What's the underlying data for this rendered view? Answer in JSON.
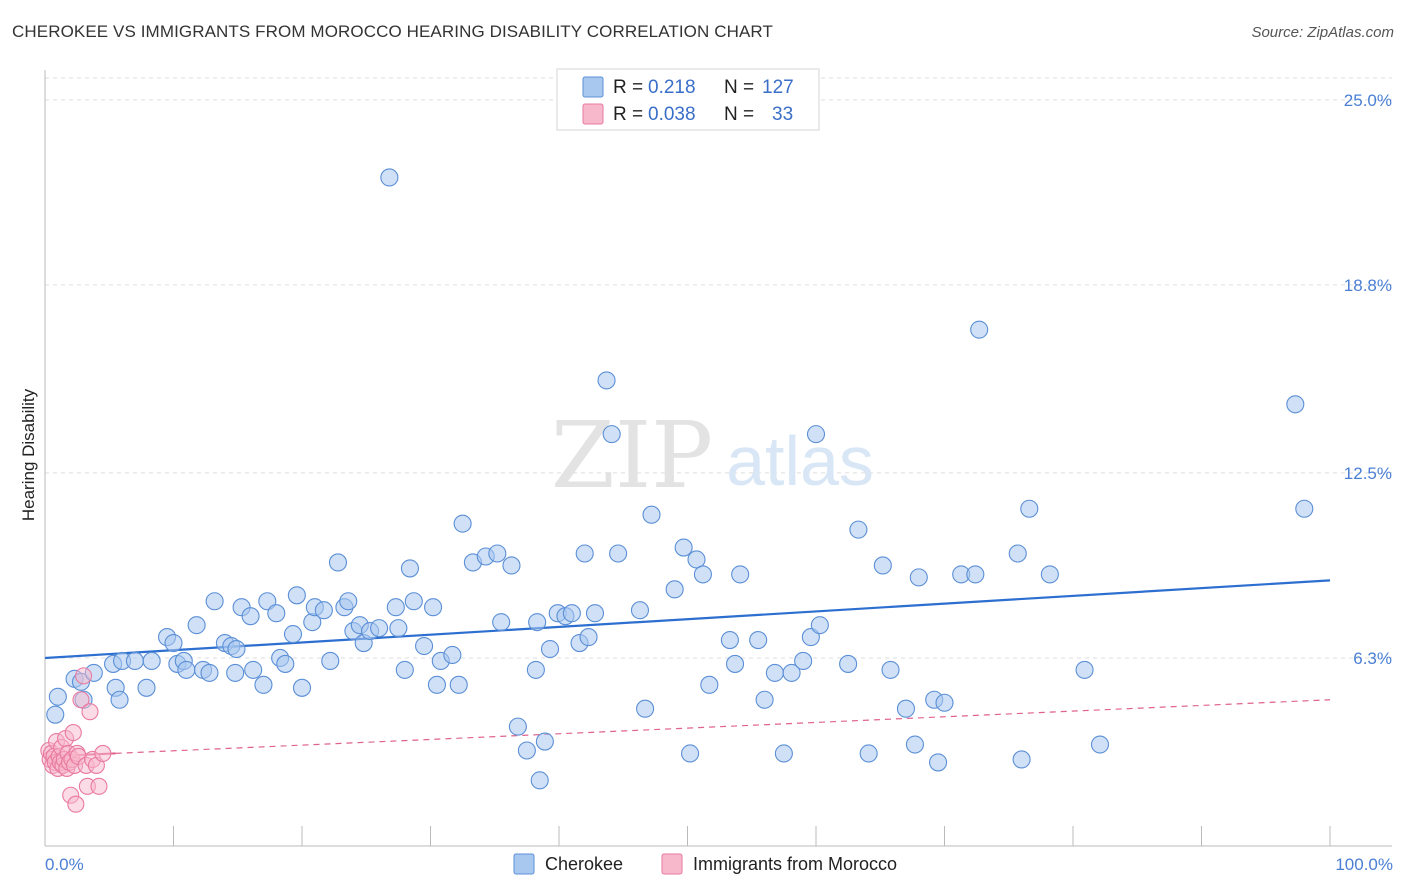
{
  "header": {
    "title": "CHEROKEE VS IMMIGRANTS FROM MOROCCO HEARING DISABILITY CORRELATION CHART",
    "source": "Source: ZipAtlas.com"
  },
  "watermark": {
    "zip": "ZIP",
    "atlas": "atlas"
  },
  "colors": {
    "cherokee_fill": "#a9c8f0",
    "cherokee_stroke": "#5b8fd6",
    "cherokee_line": "#2d6fd0",
    "morocco_fill": "#f7b8cc",
    "morocco_stroke": "#e97aa0",
    "morocco_line": "#e0628e",
    "grid": "#dddddd",
    "tick_text": "#4a7fd4"
  },
  "legend": {
    "rows": [
      {
        "r_label": "R =",
        "r_value": "0.218",
        "n_label": "N =",
        "n_value": "127"
      },
      {
        "r_label": "R =",
        "r_value": "0.038",
        "n_label": "N =",
        "n_value": "33"
      }
    ]
  },
  "chart_data": {
    "type": "scatter",
    "title": "CHEROKEE VS IMMIGRANTS FROM MOROCCO HEARING DISABILITY CORRELATION CHART",
    "xlabel": "",
    "ylabel": "Hearing Disability",
    "xlim": [
      0,
      100
    ],
    "ylim": [
      0,
      26
    ],
    "x_tick_labels": [
      "0.0%",
      "100.0%"
    ],
    "y_ticks": [
      6.3,
      12.5,
      18.8,
      25.0
    ],
    "y_tick_labels": [
      "6.3%",
      "12.5%",
      "18.8%",
      "25.0%"
    ],
    "series": [
      {
        "name": "Cherokee",
        "r": 0.218,
        "n": 127,
        "trend": {
          "x": [
            0,
            100
          ],
          "y": [
            6.3,
            8.9
          ]
        },
        "points": [
          [
            0.8,
            4.4
          ],
          [
            1.0,
            5.0
          ],
          [
            2.3,
            5.6
          ],
          [
            2.8,
            5.5
          ],
          [
            3.0,
            4.9
          ],
          [
            3.8,
            5.8
          ],
          [
            5.3,
            6.1
          ],
          [
            5.5,
            5.3
          ],
          [
            5.8,
            4.9
          ],
          [
            6.0,
            6.2
          ],
          [
            7.0,
            6.2
          ],
          [
            7.9,
            5.3
          ],
          [
            8.3,
            6.2
          ],
          [
            9.5,
            7.0
          ],
          [
            10.0,
            6.8
          ],
          [
            10.3,
            6.1
          ],
          [
            10.8,
            6.2
          ],
          [
            11.0,
            5.9
          ],
          [
            11.8,
            7.4
          ],
          [
            12.3,
            5.9
          ],
          [
            12.8,
            5.8
          ],
          [
            13.2,
            8.2
          ],
          [
            14.0,
            6.8
          ],
          [
            14.5,
            6.7
          ],
          [
            14.9,
            6.6
          ],
          [
            14.8,
            5.8
          ],
          [
            15.3,
            8.0
          ],
          [
            16.0,
            7.7
          ],
          [
            16.2,
            5.9
          ],
          [
            17.0,
            5.4
          ],
          [
            17.3,
            8.2
          ],
          [
            18.0,
            7.8
          ],
          [
            18.3,
            6.3
          ],
          [
            18.7,
            6.1
          ],
          [
            19.3,
            7.1
          ],
          [
            19.6,
            8.4
          ],
          [
            20.0,
            5.3
          ],
          [
            20.8,
            7.5
          ],
          [
            21.0,
            8.0
          ],
          [
            21.7,
            7.9
          ],
          [
            22.2,
            6.2
          ],
          [
            22.8,
            9.5
          ],
          [
            23.3,
            8.0
          ],
          [
            23.6,
            8.2
          ],
          [
            24.0,
            7.2
          ],
          [
            24.5,
            7.4
          ],
          [
            24.8,
            6.8
          ],
          [
            25.3,
            7.2
          ],
          [
            26.0,
            7.3
          ],
          [
            26.8,
            22.4
          ],
          [
            27.3,
            8.0
          ],
          [
            27.5,
            7.3
          ],
          [
            28.0,
            5.9
          ],
          [
            28.4,
            9.3
          ],
          [
            28.7,
            8.2
          ],
          [
            29.5,
            6.7
          ],
          [
            30.2,
            8.0
          ],
          [
            30.5,
            5.4
          ],
          [
            30.8,
            6.2
          ],
          [
            31.7,
            6.4
          ],
          [
            32.2,
            5.4
          ],
          [
            32.5,
            10.8
          ],
          [
            33.3,
            9.5
          ],
          [
            34.3,
            9.7
          ],
          [
            35.2,
            9.8
          ],
          [
            35.5,
            7.5
          ],
          [
            36.3,
            9.4
          ],
          [
            36.8,
            4.0
          ],
          [
            37.5,
            3.2
          ],
          [
            38.2,
            5.9
          ],
          [
            38.3,
            7.5
          ],
          [
            38.5,
            2.2
          ],
          [
            38.9,
            3.5
          ],
          [
            39.3,
            6.6
          ],
          [
            39.9,
            7.8
          ],
          [
            40.5,
            7.7
          ],
          [
            41.0,
            7.8
          ],
          [
            41.6,
            6.8
          ],
          [
            42.0,
            9.8
          ],
          [
            42.3,
            7.0
          ],
          [
            42.8,
            7.8
          ],
          [
            43.7,
            15.6
          ],
          [
            44.1,
            13.8
          ],
          [
            44.6,
            9.8
          ],
          [
            46.3,
            7.9
          ],
          [
            46.7,
            4.6
          ],
          [
            47.2,
            11.1
          ],
          [
            49.0,
            8.6
          ],
          [
            49.7,
            10.0
          ],
          [
            50.2,
            3.1
          ],
          [
            50.7,
            9.6
          ],
          [
            51.2,
            9.1
          ],
          [
            51.7,
            5.4
          ],
          [
            53.3,
            6.9
          ],
          [
            53.7,
            6.1
          ],
          [
            54.1,
            9.1
          ],
          [
            55.5,
            6.9
          ],
          [
            56.0,
            4.9
          ],
          [
            56.8,
            5.8
          ],
          [
            57.5,
            3.1
          ],
          [
            58.1,
            5.8
          ],
          [
            59.0,
            6.2
          ],
          [
            59.6,
            7.0
          ],
          [
            60.0,
            13.8
          ],
          [
            60.3,
            7.4
          ],
          [
            62.5,
            6.1
          ],
          [
            63.3,
            10.6
          ],
          [
            64.1,
            3.1
          ],
          [
            65.2,
            9.4
          ],
          [
            65.8,
            5.9
          ],
          [
            67.0,
            4.6
          ],
          [
            67.7,
            3.4
          ],
          [
            68.0,
            9.0
          ],
          [
            69.2,
            4.9
          ],
          [
            69.5,
            2.8
          ],
          [
            70.0,
            4.8
          ],
          [
            71.3,
            9.1
          ],
          [
            72.4,
            9.1
          ],
          [
            72.7,
            17.3
          ],
          [
            75.7,
            9.8
          ],
          [
            76.0,
            2.9
          ],
          [
            76.6,
            11.3
          ],
          [
            78.2,
            9.1
          ],
          [
            97.3,
            14.8
          ],
          [
            98.0,
            11.3
          ],
          [
            80.9,
            5.9
          ],
          [
            82.1,
            3.4
          ]
        ]
      },
      {
        "name": "Immigrants from Morocco",
        "r": 0.038,
        "n": 33,
        "trend": {
          "x": [
            0,
            100
          ],
          "y": [
            3.0,
            4.9
          ]
        },
        "points": [
          [
            0.3,
            3.2
          ],
          [
            0.4,
            2.9
          ],
          [
            0.5,
            3.1
          ],
          [
            0.6,
            2.7
          ],
          [
            0.7,
            3.0
          ],
          [
            0.8,
            2.8
          ],
          [
            0.9,
            3.5
          ],
          [
            1.0,
            2.6
          ],
          [
            1.1,
            3.0
          ],
          [
            1.2,
            2.8
          ],
          [
            1.3,
            3.3
          ],
          [
            1.4,
            2.7
          ],
          [
            1.5,
            2.9
          ],
          [
            1.6,
            3.6
          ],
          [
            1.7,
            2.6
          ],
          [
            1.8,
            3.1
          ],
          [
            1.9,
            2.8
          ],
          [
            2.0,
            1.7
          ],
          [
            2.1,
            2.9
          ],
          [
            2.2,
            3.8
          ],
          [
            2.3,
            2.7
          ],
          [
            2.4,
            1.4
          ],
          [
            2.5,
            3.1
          ],
          [
            2.6,
            3.0
          ],
          [
            2.8,
            4.9
          ],
          [
            3.0,
            5.7
          ],
          [
            3.2,
            2.7
          ],
          [
            3.3,
            2.0
          ],
          [
            3.5,
            4.5
          ],
          [
            3.7,
            2.9
          ],
          [
            4.0,
            2.7
          ],
          [
            4.2,
            2.0
          ],
          [
            4.5,
            3.1
          ]
        ]
      }
    ],
    "legend_entries": [
      "Cherokee",
      "Immigrants from Morocco"
    ]
  }
}
